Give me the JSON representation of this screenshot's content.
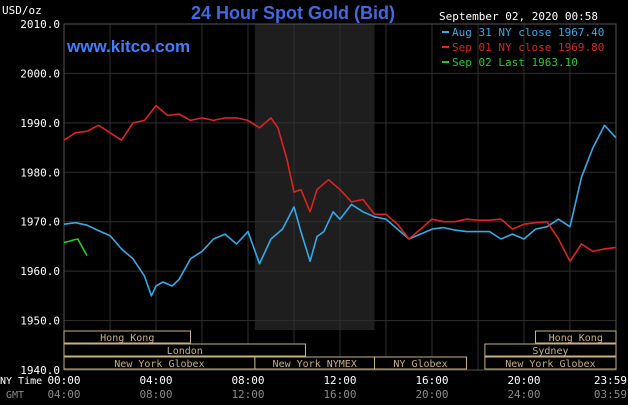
{
  "chart_data": {
    "type": "line",
    "title": "24 Hour Spot Gold (Bid)",
    "watermark": "www.kitco.com",
    "ylabel": "USD/oz",
    "timestamp": "September 02, 2020 00:58",
    "ylim": [
      1940,
      2010
    ],
    "y_ticks": [
      "2010.0",
      "2000.0",
      "1990.0",
      "1980.0",
      "1970.0",
      "1960.0",
      "1950.0",
      "1940.0"
    ],
    "y_tick_values": [
      2010,
      2000,
      1990,
      1980,
      1970,
      1960,
      1950,
      1940
    ],
    "x_hours_range": [
      0,
      24
    ],
    "x_ticks_ny": [
      "00:00",
      "04:00",
      "08:00",
      "12:00",
      "16:00",
      "20:00",
      "23:59"
    ],
    "x_ticks_gmt": [
      "04:00",
      "08:00",
      "12:00",
      "16:00",
      "20:00",
      "24:00",
      "03:59"
    ],
    "x_tick_hours": [
      0,
      4,
      8,
      12,
      16,
      20,
      24
    ],
    "ny_time_label": "NY Time",
    "gmt_label": "GMT",
    "grid": true,
    "legend_position": "top-right",
    "colors": {
      "background": "#000000",
      "grid": "#2f2f2f",
      "title": "#4169e1",
      "watermark": "#3f7fff",
      "axis_text": "#ffffff",
      "session_band": "#1e1e1e",
      "market_box": "#c8b080"
    },
    "ny_session_band_hours": [
      8.3,
      13.5
    ],
    "series": [
      {
        "name": "Aug 31 NY close 1967.40",
        "color": "#34a9e8",
        "x": [
          0,
          0.5,
          1,
          1.5,
          2,
          2.5,
          3,
          3.5,
          3.8,
          4,
          4.3,
          4.7,
          5,
          5.5,
          6,
          6.5,
          7,
          7.5,
          8,
          8.5,
          9,
          9.5,
          10,
          10.3,
          10.7,
          11,
          11.3,
          11.7,
          12,
          12.5,
          13,
          13.5,
          14,
          14.5,
          15,
          15.5,
          16,
          16.5,
          17,
          17.5,
          18,
          18.5,
          19,
          19.5,
          20,
          20.5,
          21,
          21.5,
          22,
          22.5,
          23,
          23.5,
          24
        ],
        "values": [
          1969.5,
          1969.8,
          1969.3,
          1968.2,
          1967.2,
          1964.5,
          1962.5,
          1959.0,
          1955.0,
          1957.0,
          1957.8,
          1957.0,
          1958.3,
          1962.5,
          1964.0,
          1966.5,
          1967.5,
          1965.5,
          1968.0,
          1961.5,
          1966.5,
          1968.5,
          1973.0,
          1968.0,
          1962.0,
          1967.0,
          1968.0,
          1972.0,
          1970.5,
          1973.5,
          1972.0,
          1971.0,
          1970.5,
          1968.5,
          1966.5,
          1967.5,
          1968.5,
          1968.8,
          1968.3,
          1968.0,
          1968.0,
          1968.0,
          1966.5,
          1967.5,
          1966.5,
          1968.5,
          1969.0,
          1970.5,
          1969.0,
          1979.0,
          1985.0,
          1989.5,
          1987.0
        ]
      },
      {
        "name": "Sep 01 NY close 1969.80",
        "color": "#dd2222",
        "x": [
          0,
          0.5,
          1,
          1.5,
          2,
          2.5,
          3,
          3.5,
          4,
          4.5,
          5,
          5.5,
          6,
          6.5,
          7,
          7.5,
          8,
          8.5,
          9,
          9.3,
          9.7,
          10,
          10.3,
          10.7,
          11,
          11.5,
          12,
          12.5,
          13,
          13.5,
          14,
          14.5,
          15,
          15.5,
          16,
          16.5,
          17,
          17.5,
          18,
          18.5,
          19,
          19.5,
          20,
          20.5,
          21,
          21.5,
          22,
          22.5,
          23,
          23.5,
          24
        ],
        "values": [
          1986.5,
          1988.0,
          1988.3,
          1989.5,
          1988.0,
          1986.5,
          1990.0,
          1990.5,
          1993.5,
          1991.5,
          1991.8,
          1990.5,
          1991.0,
          1990.5,
          1991.0,
          1991.0,
          1990.5,
          1989.0,
          1991.0,
          1989.0,
          1982.5,
          1976.0,
          1976.5,
          1972.0,
          1976.5,
          1978.5,
          1976.5,
          1974.0,
          1974.5,
          1971.5,
          1971.5,
          1969.5,
          1966.5,
          1968.5,
          1970.5,
          1970.0,
          1970.0,
          1970.5,
          1970.3,
          1970.3,
          1970.5,
          1968.5,
          1969.5,
          1969.8,
          1970.0,
          1966.5,
          1962.0,
          1965.5,
          1964.0,
          1964.5,
          1964.8
        ]
      },
      {
        "name": "Sep 02 Last 1963.10",
        "color": "#22cc22",
        "x": [
          0,
          0.2,
          0.4,
          0.6,
          0.8,
          1
        ],
        "values": [
          1965.8,
          1966.0,
          1966.3,
          1966.5,
          1964.8,
          1963.1
        ]
      }
    ],
    "market_sessions": [
      {
        "name": "Hong Kong",
        "start": 0,
        "end": 5.5,
        "row": 0
      },
      {
        "name": "Hong Kong",
        "start": 20.5,
        "end": 24,
        "row": 0
      },
      {
        "name": "London",
        "start": 0,
        "end": 10.5,
        "row": 1
      },
      {
        "name": "Sydney",
        "start": 18.3,
        "end": 24,
        "row": 1
      },
      {
        "name": "New York Globex",
        "start": 0,
        "end": 8.3,
        "row": 2
      },
      {
        "name": "New York NYMEX",
        "start": 8.3,
        "end": 13.5,
        "row": 2
      },
      {
        "name": "NY Globex",
        "start": 13.5,
        "end": 17.5,
        "row": 2
      },
      {
        "name": "New York Globex",
        "start": 18.3,
        "end": 24,
        "row": 2
      }
    ]
  }
}
